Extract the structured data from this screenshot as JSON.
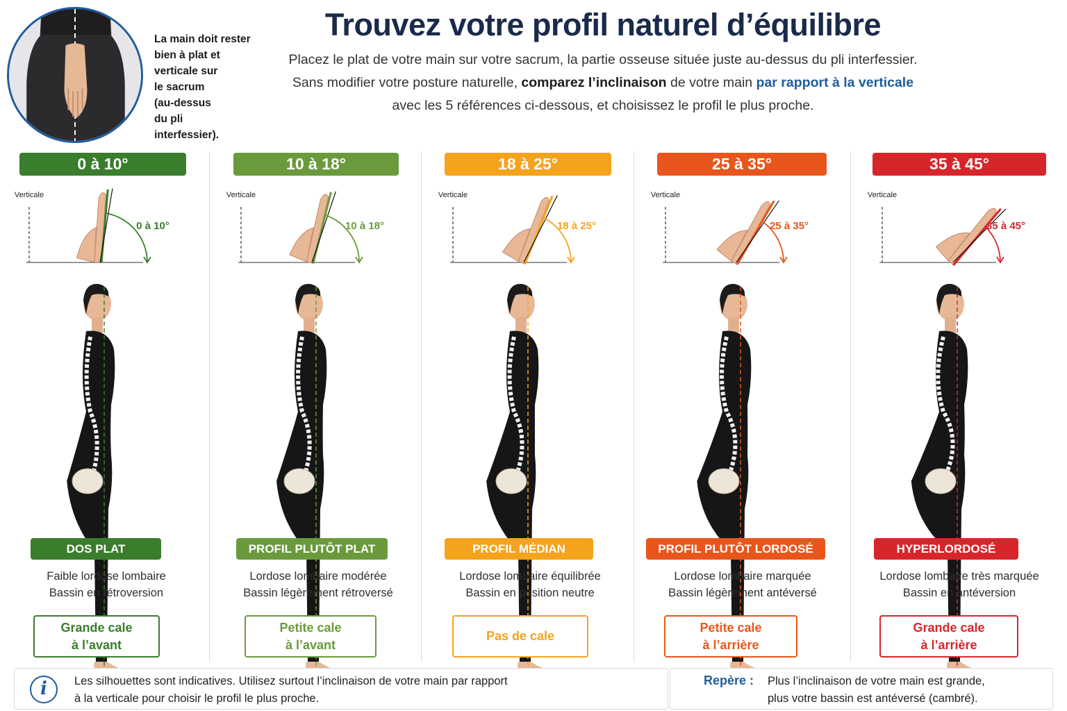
{
  "header": {
    "photo_note": "La main doit rester\nbien à plat et\nverticale sur\nle sacrum\n(au-dessus\ndu pli\ninterfessier).",
    "title": "Trouvez votre profil naturel d’équilibre",
    "intro_line1": "Placez le plat de votre main sur votre sacrum, la partie osseuse située juste au-dessus du pli interfessier.",
    "intro_line2_a": "Sans modifier votre posture naturelle, ",
    "intro_line2_b": "comparez l’inclinaison",
    "intro_line2_c": " de votre main ",
    "intro_line2_d": "par rapport à la verticale",
    "intro_line3": "avec les 5 références ci-dessous, et choisissez le profil le plus proche."
  },
  "profiles": [
    {
      "range": "0 à 10°",
      "arc_label": "0 à 10°",
      "vertical_label": "Verticale",
      "hand_tilt": 5,
      "color": "#3a7d2c",
      "name": "DOS PLAT",
      "desc1": "Faible lordose lombaire",
      "desc2": "Bassin en rétroversion",
      "cale1": "Grande cale",
      "cale2": "à l’avant"
    },
    {
      "range": "10 à 18°",
      "arc_label": "10 à 18°",
      "vertical_label": "Verticale",
      "hand_tilt": 14,
      "color": "#6a9a3c",
      "name": "PROFIL PLUTÔT PLAT",
      "desc1": "Lordose lombaire modérée",
      "desc2": "Bassin légèrement rétroversé",
      "cale1": "Petite cale",
      "cale2": "à l’avant"
    },
    {
      "range": "18 à 25°",
      "arc_label": "18 à 25°",
      "vertical_label": "Verticale",
      "hand_tilt": 22,
      "color": "#f5a31d",
      "name": "PROFIL MÉDIAN",
      "desc1": "Lordose lombaire équilibrée",
      "desc2": "Bassin en position neutre",
      "cale1": "Pas de cale",
      "cale2": ""
    },
    {
      "range": "25 à 35°",
      "arc_label": "25 à 35°",
      "vertical_label": "Verticale",
      "hand_tilt": 30,
      "color": "#e8561c",
      "name": "PROFIL PLUTÔT LORDOSÉ",
      "desc1": "Lordose lombaire marquée",
      "desc2": "Bassin légèrement antéversé",
      "cale1": "Petite cale",
      "cale2": "à l’arrière"
    },
    {
      "range": "35 à 45°",
      "arc_label": "35 à 45°",
      "vertical_label": "Verticale",
      "hand_tilt": 40,
      "color": "#d7262b",
      "name": "HYPERLORDOSÉ",
      "desc1": "Lordose lombaire très marquée",
      "desc2": "Bassin en antéversion",
      "cale1": "Grande cale",
      "cale2": "à l’arrière"
    }
  ],
  "footer": {
    "info_icon": "i",
    "info_line1": "Les silhouettes sont indicatives. Utilisez surtout l’inclinaison de votre main par rapport",
    "info_line2": "à la verticale pour choisir le profil le plus proche.",
    "repere_label": "Repère :",
    "repere_line1": "Plus l’inclinaison de votre main est grande,",
    "repere_line2": "plus votre bassin est antéversé (cambré)."
  }
}
